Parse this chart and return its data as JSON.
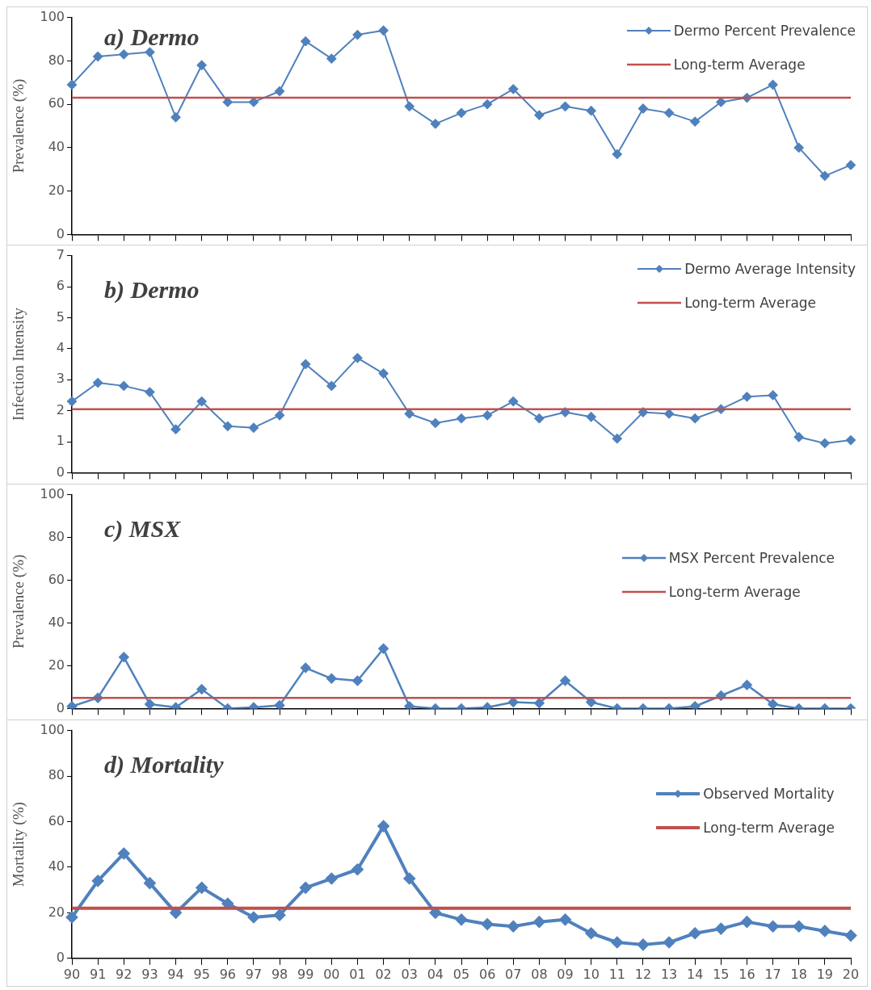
{
  "chart_data": [
    {
      "type": "line",
      "title": "a) Dermo",
      "ylabel": "Prevalence (%)",
      "categories": [
        "90",
        "91",
        "92",
        "93",
        "94",
        "95",
        "96",
        "97",
        "98",
        "99",
        "00",
        "01",
        "02",
        "03",
        "04",
        "05",
        "06",
        "07",
        "08",
        "09",
        "10",
        "11",
        "12",
        "13",
        "14",
        "15",
        "16",
        "17",
        "18",
        "19",
        "20"
      ],
      "series": [
        {
          "name": "Dermo Percent Prevalence",
          "color": "#4f81bd",
          "values": [
            69,
            82,
            83,
            84,
            54,
            78,
            61,
            61,
            66,
            89,
            81,
            92,
            94,
            59,
            51,
            56,
            60,
            67,
            55,
            59,
            57,
            37,
            58,
            56,
            52,
            61,
            63,
            69,
            40,
            27,
            32
          ]
        }
      ],
      "ref_lines": [
        {
          "axis": "y",
          "value": 63,
          "label": "Long-term Average",
          "color": "#c0504d"
        }
      ],
      "ylim": [
        0,
        100
      ],
      "yticks": [
        0,
        20,
        40,
        60,
        80,
        100
      ],
      "legend": "top right",
      "marker": "diamond",
      "tick_labels": "y"
    },
    {
      "type": "line",
      "title": "b) Dermo",
      "ylabel": "Infection Intensity",
      "categories": [
        "90",
        "91",
        "92",
        "93",
        "94",
        "95",
        "96",
        "97",
        "98",
        "99",
        "00",
        "01",
        "02",
        "03",
        "04",
        "05",
        "06",
        "07",
        "08",
        "09",
        "10",
        "11",
        "12",
        "13",
        "14",
        "15",
        "16",
        "17",
        "18",
        "19",
        "20"
      ],
      "series": [
        {
          "name": "Dermo Average Intensity",
          "color": "#4f81bd",
          "values": [
            2.3,
            2.9,
            2.8,
            2.6,
            1.4,
            2.3,
            1.5,
            1.45,
            1.85,
            3.5,
            2.8,
            3.7,
            3.2,
            1.9,
            1.6,
            1.75,
            1.85,
            2.3,
            1.75,
            1.95,
            1.8,
            1.1,
            1.95,
            1.9,
            1.75,
            2.05,
            2.45,
            2.5,
            1.15,
            0.95,
            1.05
          ]
        }
      ],
      "ref_lines": [
        {
          "axis": "y",
          "value": 2.05,
          "label": "Long-term Average",
          "color": "#c0504d"
        }
      ],
      "ylim": [
        0,
        7
      ],
      "yticks": [
        0,
        1,
        2,
        3,
        4,
        5,
        6,
        7
      ],
      "legend": "top right",
      "marker": "diamond",
      "tick_labels": "y"
    },
    {
      "type": "line",
      "title": "c) MSX",
      "ylabel": "Prevalence (%)",
      "categories": [
        "90",
        "91",
        "92",
        "93",
        "94",
        "95",
        "96",
        "97",
        "98",
        "99",
        "00",
        "01",
        "02",
        "03",
        "04",
        "05",
        "06",
        "07",
        "08",
        "09",
        "10",
        "11",
        "12",
        "13",
        "14",
        "15",
        "16",
        "17",
        "18",
        "19",
        "20"
      ],
      "series": [
        {
          "name": "MSX Percent Prevalence",
          "color": "#4f81bd",
          "values": [
            1,
            5,
            24,
            2,
            0.5,
            9,
            0,
            0.5,
            1.5,
            19,
            14,
            13,
            28,
            1,
            0,
            0,
            0.5,
            3,
            2.5,
            13,
            3,
            0,
            0,
            0,
            1,
            6,
            11,
            2,
            0,
            0,
            0
          ]
        }
      ],
      "ref_lines": [
        {
          "axis": "y",
          "value": 5,
          "label": "Long-term Average",
          "color": "#c0504d"
        }
      ],
      "ylim": [
        0,
        100
      ],
      "yticks": [
        0,
        20,
        40,
        60,
        80,
        100
      ],
      "legend": "right",
      "marker": "diamond",
      "tick_labels": "y"
    },
    {
      "type": "line",
      "title": "d) Mortality",
      "ylabel": "Mortality (%)",
      "categories": [
        "90",
        "91",
        "92",
        "93",
        "94",
        "95",
        "96",
        "97",
        "98",
        "99",
        "00",
        "01",
        "02",
        "03",
        "04",
        "05",
        "06",
        "07",
        "08",
        "09",
        "10",
        "11",
        "12",
        "13",
        "14",
        "15",
        "16",
        "17",
        "18",
        "19",
        "20"
      ],
      "series": [
        {
          "name": "Observed Mortality",
          "color": "#4f81bd",
          "values": [
            18,
            34,
            46,
            33,
            20,
            31,
            24,
            18,
            19,
            31,
            35,
            39,
            58,
            35,
            20,
            17,
            15,
            14,
            16,
            17,
            11,
            7,
            6,
            7,
            11,
            13,
            16,
            14,
            14,
            12,
            10
          ]
        }
      ],
      "ref_lines": [
        {
          "axis": "y",
          "value": 22,
          "label": "Long-term Average",
          "color": "#c0504d"
        }
      ],
      "ylim": [
        0,
        100
      ],
      "yticks": [
        0,
        20,
        40,
        60,
        80,
        100
      ],
      "legend": "right",
      "marker": "diamond"
    }
  ]
}
